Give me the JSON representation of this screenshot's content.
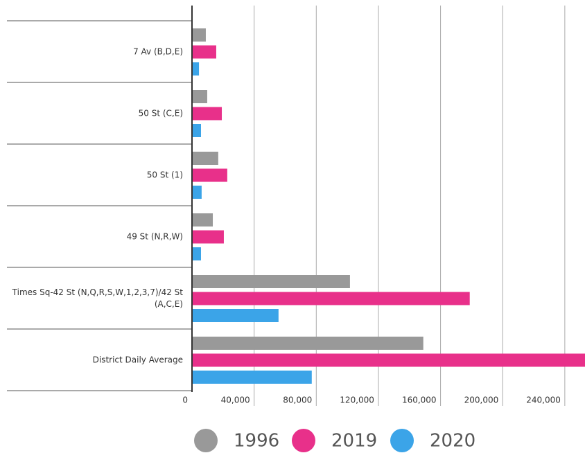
{
  "chart_data": {
    "type": "bar",
    "orientation": "horizontal",
    "categories": [
      "7 Av (B,D,E)",
      "50 St (C,E)",
      "50 St (1)",
      "49 St (N,R,W)",
      "Times Sq-42 St (N,Q,R,S,W,1,2,3,7)/42 St (A,C,E)",
      "District Daily Average"
    ],
    "series": [
      {
        "name": "1996",
        "color": "#999999",
        "values": [
          8900,
          9800,
          16900,
          13400,
          101700,
          148900
        ]
      },
      {
        "name": "2019",
        "color": "#e8308a",
        "values": [
          15600,
          19200,
          22700,
          20500,
          178800,
          255000
        ]
      },
      {
        "name": "2020",
        "color": "#3ba4e8",
        "values": [
          4500,
          5800,
          6200,
          5800,
          55700,
          77100
        ]
      }
    ],
    "xlim": [
      0,
      253000
    ],
    "xticks": [
      0,
      {
        "value": 40000,
        "label": "40,000"
      },
      {
        "value": 80000,
        "label": "80,000"
      },
      {
        "value": 120000,
        "label": "120,000"
      },
      {
        "value": 160000,
        "label": "160,000"
      },
      {
        "value": 200000,
        "label": "200,000"
      },
      {
        "value": 240000,
        "label": "240,000"
      }
    ],
    "grid": true,
    "legend": "bottom"
  }
}
